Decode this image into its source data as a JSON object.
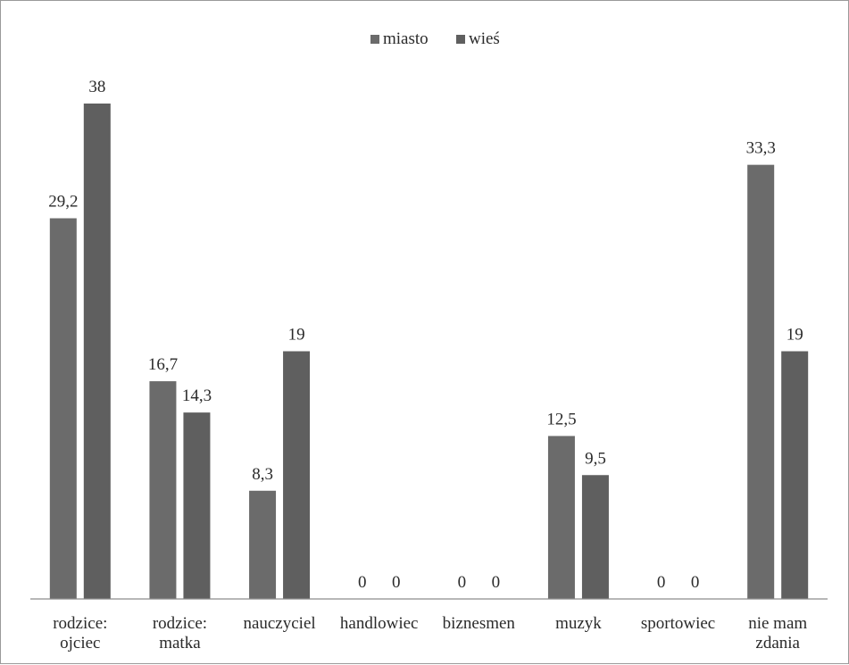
{
  "chart_data": {
    "type": "bar",
    "categories": [
      [
        "rodzice:",
        "ojciec"
      ],
      [
        "rodzice:",
        "matka"
      ],
      [
        "nauczyciel"
      ],
      [
        "handlowiec"
      ],
      [
        "biznesmen"
      ],
      [
        "muzyk"
      ],
      [
        "sportowiec"
      ],
      [
        "nie mam",
        "zdania"
      ]
    ],
    "series": [
      {
        "name": "miasto",
        "color": "#6b6b6b",
        "values": [
          29.2,
          16.7,
          8.3,
          0,
          0,
          12.5,
          0,
          33.3
        ]
      },
      {
        "name": "wieś",
        "color": "#5f5f5f",
        "values": [
          38,
          14.3,
          19,
          0,
          0,
          9.5,
          0,
          19
        ]
      }
    ],
    "data_labels": [
      [
        "29,2",
        "16,7",
        "8,3",
        "0",
        "0",
        "12,5",
        "0",
        "33,3"
      ],
      [
        "38",
        "14,3",
        "19",
        "0",
        "0",
        "9,5",
        "0",
        "19"
      ]
    ],
    "ylim": [
      0,
      38
    ],
    "legend_position": "top-center",
    "grid": false
  }
}
